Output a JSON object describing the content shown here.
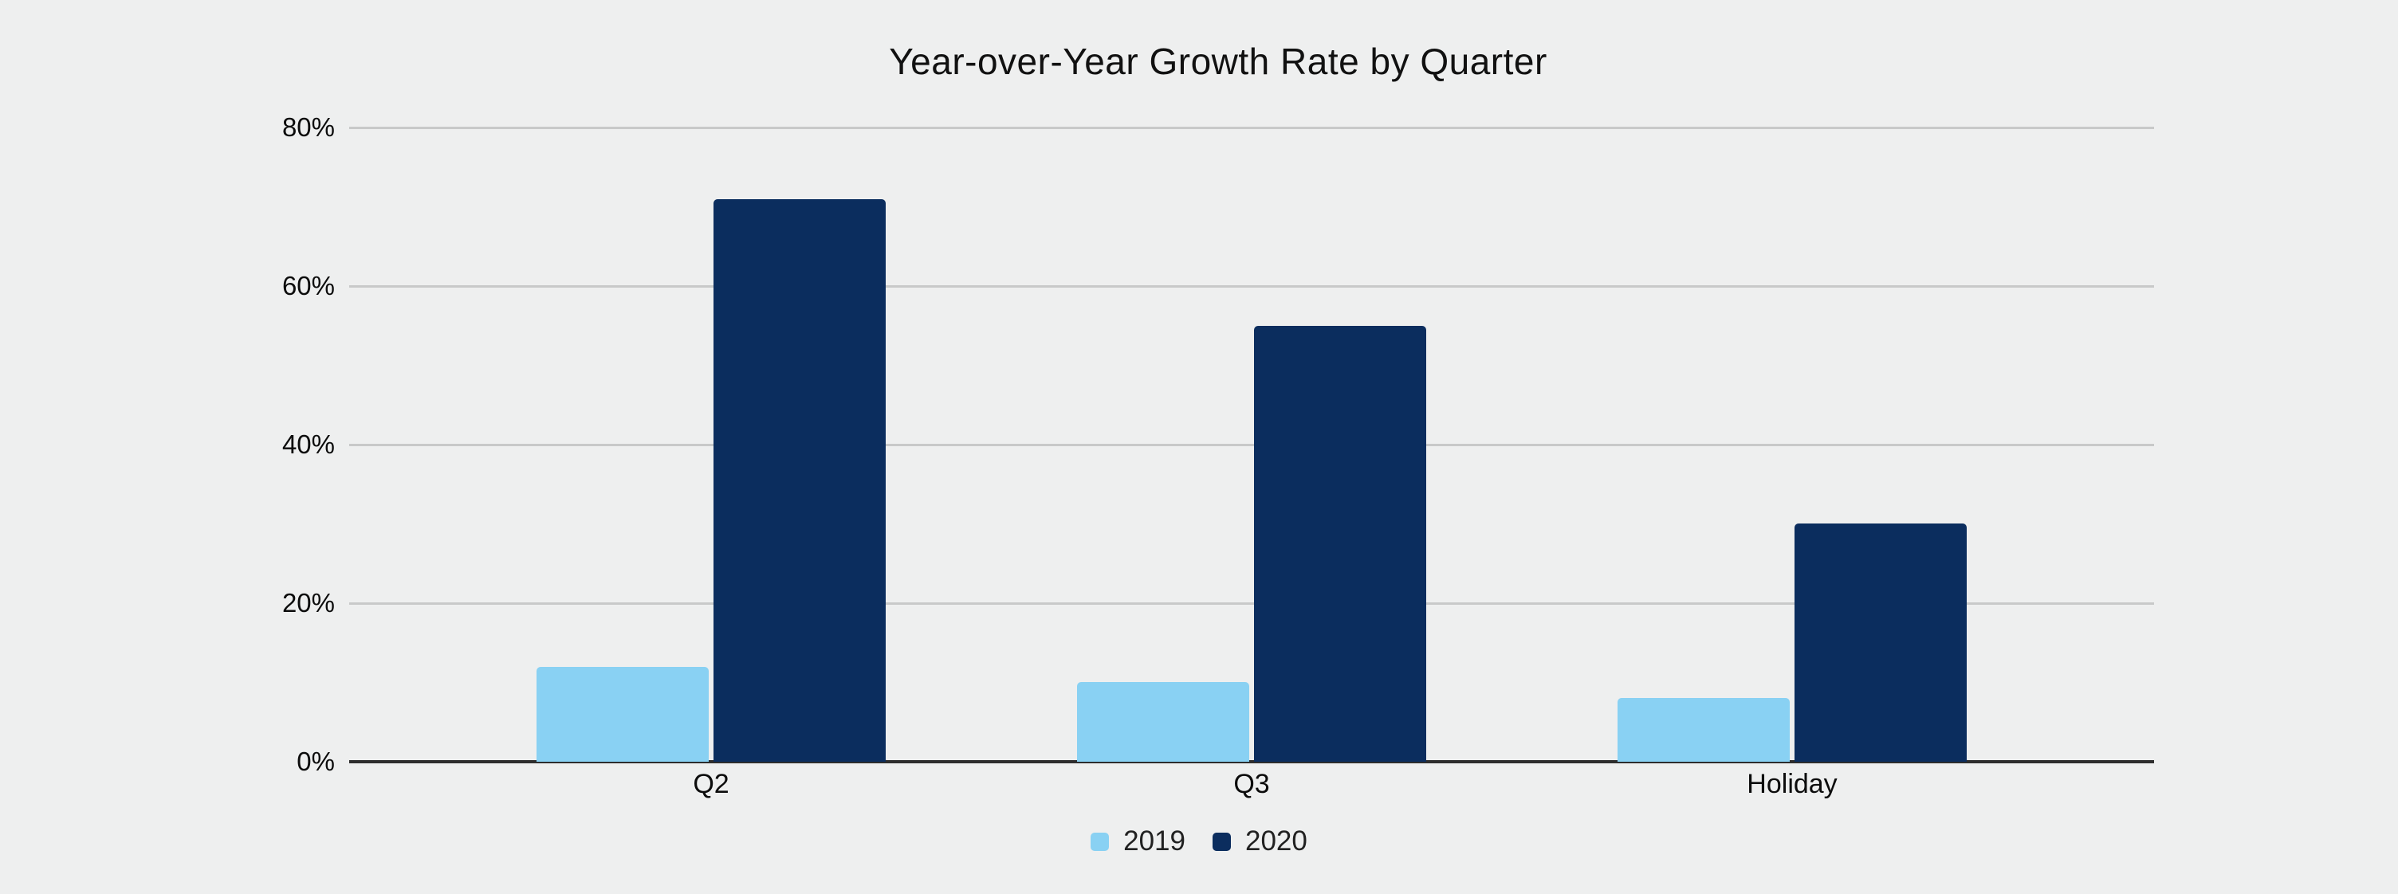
{
  "page": {
    "background_color": "#eeefef"
  },
  "chart_data": {
    "type": "bar",
    "title": "Year-over-Year Growth Rate by Quarter",
    "xlabel": "",
    "ylabel": "",
    "categories": [
      "Q2",
      "Q3",
      "Holiday"
    ],
    "series": [
      {
        "name": "2019",
        "color": "#89d1f3",
        "values": [
          12,
          10,
          8
        ]
      },
      {
        "name": "2020",
        "color": "#0b2d5e",
        "values": [
          71,
          55,
          30
        ]
      }
    ],
    "ylim": [
      0,
      80
    ],
    "yticks": [
      0,
      20,
      40,
      60,
      80
    ],
    "ytick_labels": [
      "0%",
      "20%",
      "40%",
      "60%",
      "80%"
    ],
    "grid": true,
    "legend_position": "bottom",
    "colors": {
      "gridline": "#c8c9c9",
      "axis_line": "#2d2d2d",
      "title_text": "#111111",
      "tick_text": "#0c0c0c",
      "legend_text": "#212121"
    }
  }
}
